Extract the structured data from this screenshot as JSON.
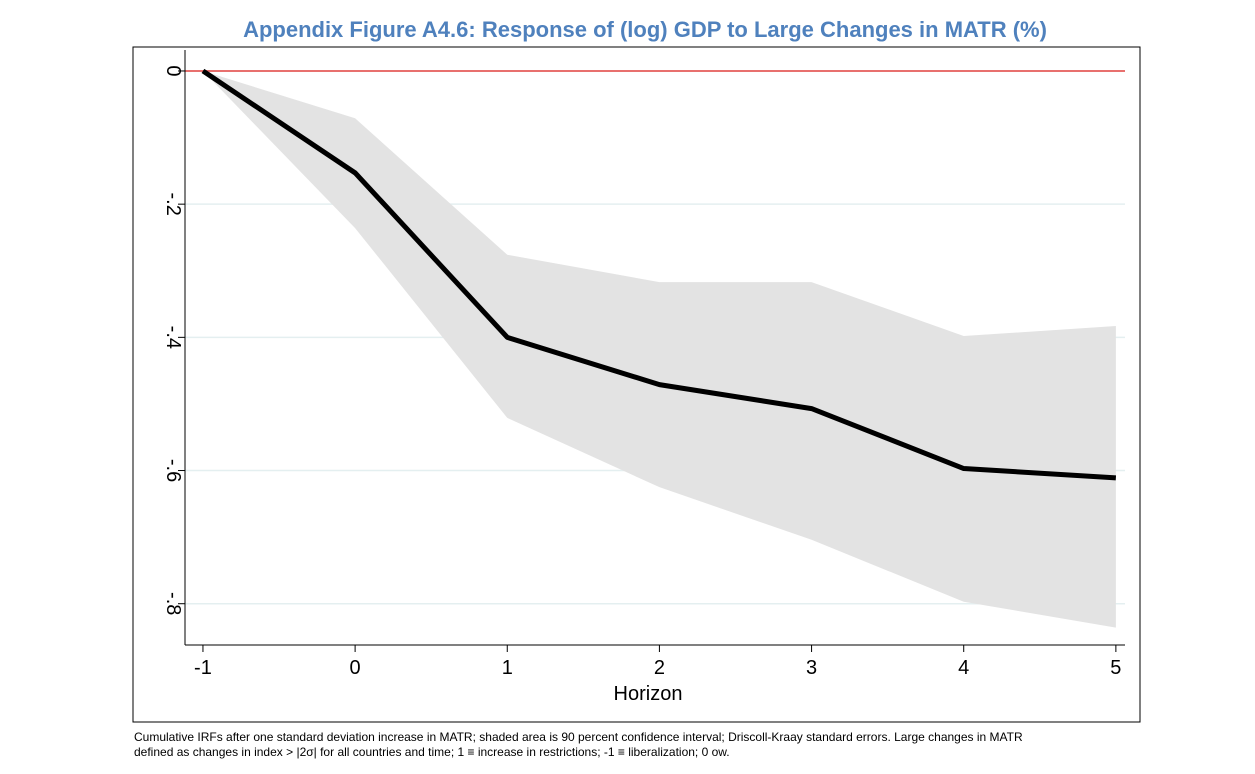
{
  "chart_data": {
    "type": "line",
    "title": "Appendix Figure A4.6: Response of (log) GDP to Large Changes in MATR (%)",
    "xlabel": "Horizon",
    "x": [
      -1,
      0,
      1,
      2,
      3,
      4,
      5
    ],
    "values": [
      0,
      -0.153,
      -0.4,
      -0.471,
      -0.507,
      -0.597,
      -0.611
    ],
    "ci_upper": [
      0,
      -0.071,
      -0.276,
      -0.317,
      -0.317,
      -0.398,
      -0.383
    ],
    "ci_lower": [
      0,
      -0.236,
      -0.521,
      -0.625,
      -0.704,
      -0.797,
      -0.836
    ],
    "line_color": "#000000",
    "band_color": "#e3e3e3",
    "reference_line": {
      "value": 0,
      "color": "#e8706e"
    },
    "xlim": [
      -1.118,
      5.06
    ],
    "ylim": [
      -0.862,
      0.0315
    ],
    "xticks": [
      -1,
      0,
      1,
      2,
      3,
      4,
      5
    ],
    "yticks": [
      0,
      {
        "value": -0.2,
        "label": "-.2"
      },
      {
        "value": -0.4,
        "label": "-.4"
      },
      {
        "value": -0.6,
        "label": "-.6"
      },
      {
        "value": -0.8,
        "label": "-.8"
      }
    ],
    "grid": true,
    "footnote": [
      "Cumulative IRFs after one standard deviation increase in MATR; shaded area is 90 percent confidence interval; Driscoll-Kraay standard errors.  Large changes in MATR",
      "defined as changes in index > |2σ| for all countries and time; 1 ≡ increase in restrictions; -1 ≡ liberalization; 0 ow."
    ]
  }
}
